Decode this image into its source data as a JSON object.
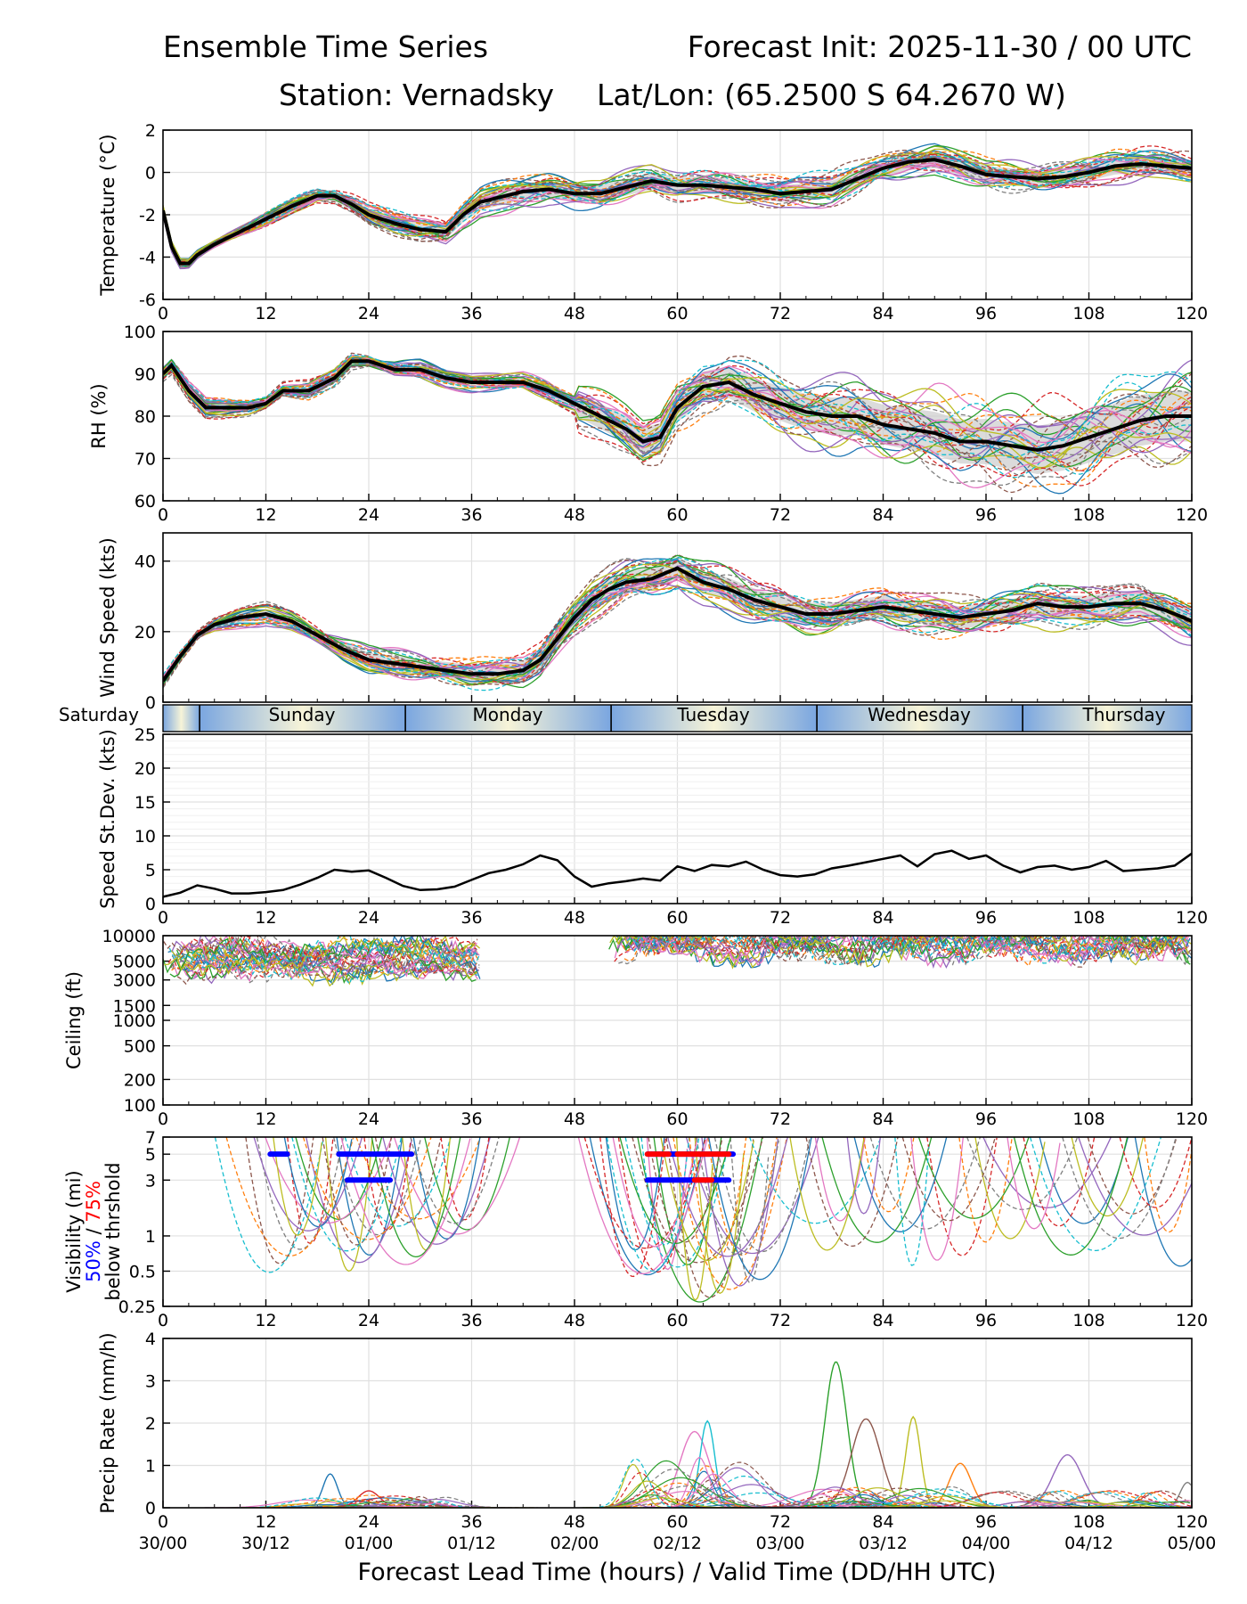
{
  "header": {
    "title_left": "Ensemble Time Series",
    "title_right": "Forecast Init: 2025-11-30 / 00 UTC",
    "station": "Station: Vernadsky",
    "latlon": "Lat/Lon: (65.2500 S 64.2670 W)"
  },
  "x_axis": {
    "ticks": [
      0,
      12,
      24,
      36,
      48,
      60,
      72,
      84,
      96,
      108,
      120
    ],
    "tick_labels": [
      "0",
      "12",
      "24",
      "36",
      "48",
      "60",
      "72",
      "84",
      "96",
      "108",
      "120"
    ],
    "valid_time_labels": [
      "30/00",
      "30/12",
      "01/00",
      "01/12",
      "02/00",
      "02/12",
      "03/00",
      "03/12",
      "04/00",
      "04/12",
      "05/00"
    ],
    "label": "Forecast Lead Time (hours) / Valid Time (DD/HH UTC)"
  },
  "day_strip": {
    "labels": [
      "Saturday",
      "Sunday",
      "Monday",
      "Tuesday",
      "Wednesday",
      "Thursday"
    ],
    "boundaries_h": [
      4.27,
      28.27,
      52.27,
      76.27,
      100.27
    ],
    "colors": {
      "edge": "#7aa6e0",
      "center": "#f7f4d8"
    }
  },
  "legend_text": {
    "vis_50": "50%",
    "slash": " / ",
    "vis_75": "75%",
    "below": "below thrshold",
    "vis_prefix": "Visibility (mi)"
  },
  "colors": {
    "mean": "#000000",
    "spread": "#cccccc",
    "vis_50": "#0000ff",
    "vis_75": "#ff0000"
  },
  "chart_data": [
    {
      "type": "line",
      "id": "temperature",
      "ylabel": "Temperature (°C)",
      "ylim": [
        -6,
        2
      ],
      "yticks": [
        -6,
        -4,
        -2,
        0,
        2
      ],
      "xlim": [
        0,
        120
      ],
      "grid": true,
      "members": 30,
      "ensemble_mean": {
        "x": [
          0,
          1,
          2,
          3,
          4,
          6,
          9,
          12,
          15,
          18,
          20,
          22,
          24,
          27,
          30,
          33,
          35,
          37,
          39,
          42,
          45,
          48,
          51,
          54,
          57,
          60,
          63,
          66,
          69,
          72,
          75,
          78,
          81,
          84,
          87,
          90,
          93,
          96,
          99,
          102,
          105,
          108,
          111,
          114,
          117,
          120
        ],
        "y": [
          -1.8,
          -3.5,
          -4.3,
          -4.3,
          -3.9,
          -3.4,
          -2.8,
          -2.2,
          -1.6,
          -1.1,
          -1.1,
          -1.5,
          -2.0,
          -2.4,
          -2.7,
          -2.8,
          -2.0,
          -1.4,
          -1.2,
          -0.9,
          -0.8,
          -1.0,
          -1.0,
          -0.7,
          -0.4,
          -0.6,
          -0.6,
          -0.7,
          -0.8,
          -1.0,
          -0.9,
          -0.8,
          -0.3,
          0.2,
          0.5,
          0.6,
          0.3,
          -0.1,
          -0.2,
          -0.3,
          -0.2,
          0.0,
          0.3,
          0.4,
          0.3,
          0.2
        ]
      }
    },
    {
      "type": "line",
      "id": "rh",
      "ylabel": "RH (%)",
      "ylim": [
        60,
        100
      ],
      "yticks": [
        60,
        70,
        80,
        90,
        100
      ],
      "xlim": [
        0,
        120
      ],
      "grid": true,
      "members": 30,
      "ensemble_mean": {
        "x": [
          0,
          1,
          3,
          5,
          8,
          10,
          12,
          14,
          17,
          20,
          22,
          24,
          27,
          30,
          33,
          36,
          39,
          42,
          45,
          48,
          51,
          54,
          56,
          58,
          60,
          63,
          66,
          69,
          72,
          75,
          78,
          81,
          84,
          87,
          90,
          93,
          96,
          99,
          102,
          105,
          108,
          111,
          114,
          117,
          120
        ],
        "y": [
          90,
          92,
          86,
          82,
          82,
          82,
          83,
          86,
          86,
          89,
          93,
          93,
          91,
          91,
          89,
          88,
          88,
          88,
          86,
          83,
          80,
          77,
          74,
          75,
          82,
          87,
          88,
          85,
          83,
          81,
          80,
          80,
          78,
          77,
          76,
          74,
          74,
          73,
          72,
          73,
          75,
          77,
          79,
          80,
          80
        ]
      }
    },
    {
      "type": "line",
      "id": "wind_speed",
      "ylabel": "Wind Speed (kts)",
      "ylim": [
        0,
        48
      ],
      "yticks": [
        0,
        20,
        40
      ],
      "xlim": [
        0,
        120
      ],
      "grid": true,
      "members": 30,
      "ensemble_mean": {
        "x": [
          0,
          2,
          4,
          6,
          9,
          12,
          15,
          18,
          21,
          24,
          27,
          30,
          33,
          36,
          39,
          42,
          44,
          46,
          48,
          50,
          52,
          54,
          57,
          60,
          63,
          66,
          69,
          72,
          75,
          78,
          81,
          84,
          87,
          90,
          93,
          96,
          99,
          102,
          105,
          108,
          111,
          114,
          117,
          120
        ],
        "y": [
          6,
          13,
          19,
          22,
          24,
          25,
          23,
          19,
          15,
          12,
          11,
          10,
          9,
          8,
          8,
          9,
          12,
          18,
          24,
          29,
          32,
          34,
          35,
          38,
          34,
          32,
          29,
          27,
          25,
          25,
          26,
          27,
          26,
          25,
          24,
          25,
          26,
          28,
          27,
          27,
          28,
          28,
          26,
          23
        ]
      }
    },
    {
      "type": "line",
      "id": "speed_stdev",
      "ylabel": "Speed St.Dev. (kts)",
      "ylim": [
        0,
        25
      ],
      "yticks": [
        0,
        5,
        10,
        15,
        20,
        25
      ],
      "xlim": [
        0,
        120
      ],
      "grid": true,
      "series": [
        {
          "name": "speed std dev",
          "x": [
            0,
            2,
            4,
            6,
            8,
            10,
            12,
            14,
            16,
            18,
            20,
            22,
            24,
            26,
            28,
            30,
            32,
            34,
            36,
            38,
            40,
            42,
            44,
            46,
            48,
            50,
            52,
            54,
            56,
            58,
            60,
            62,
            64,
            66,
            68,
            70,
            72,
            74,
            76,
            78,
            80,
            82,
            84,
            86,
            88,
            90,
            92,
            94,
            96,
            98,
            100,
            102,
            104,
            106,
            108,
            110,
            112,
            114,
            116,
            118,
            120
          ],
          "y": [
            1.0,
            1.6,
            2.7,
            2.2,
            1.5,
            1.5,
            1.7,
            2.0,
            2.8,
            3.8,
            5.0,
            4.7,
            4.9,
            3.8,
            2.6,
            2.0,
            2.1,
            2.5,
            3.5,
            4.5,
            5.0,
            5.8,
            7.1,
            6.4,
            4.0,
            2.5,
            3.0,
            3.3,
            3.7,
            3.4,
            5.5,
            4.8,
            5.7,
            5.5,
            6.2,
            5.0,
            4.2,
            4.0,
            4.3,
            5.2,
            5.6,
            6.1,
            6.6,
            7.1,
            5.5,
            7.3,
            7.8,
            6.6,
            7.1,
            5.6,
            4.6,
            5.4,
            5.6,
            5.0,
            5.4,
            6.3,
            4.8,
            5.0,
            5.2,
            5.6,
            7.4
          ]
        }
      ]
    },
    {
      "type": "line",
      "id": "ceiling",
      "ylabel": "Ceiling (ft)",
      "yscale": "log",
      "ylim": [
        100,
        10000
      ],
      "yticks": [
        100,
        200,
        500,
        1000,
        1500,
        3000,
        5000,
        10000
      ],
      "xlim": [
        0,
        120
      ],
      "grid": true,
      "members": 30,
      "notes": "members only; cloud bases mostly 1000-10000 ft around h 0-36 and h 52-120"
    },
    {
      "type": "line",
      "id": "visibility",
      "ylabel": "Visibility (mi) 50% / 75% below thrshold",
      "yscale": "log",
      "ylim": [
        0.25,
        7
      ],
      "yticks": [
        0.25,
        0.5,
        1,
        3,
        5,
        7
      ],
      "xlim": [
        0,
        120
      ],
      "grid": true,
      "members": 30,
      "threshold_bars": [
        {
          "level": 5,
          "percentile": 50,
          "color": "#0000ff",
          "start_h": 12.5,
          "end_h": 14.5
        },
        {
          "level": 5,
          "percentile": 50,
          "color": "#0000ff",
          "start_h": 20.5,
          "end_h": 29
        },
        {
          "level": 3,
          "percentile": 50,
          "color": "#0000ff",
          "start_h": 21.5,
          "end_h": 26.5
        },
        {
          "level": 5,
          "percentile": 50,
          "color": "#0000ff",
          "start_h": 56.5,
          "end_h": 66.5
        },
        {
          "level": 5,
          "percentile": 75,
          "color": "#ff0000",
          "start_h": 56.5,
          "end_h": 59
        },
        {
          "level": 5,
          "percentile": 75,
          "color": "#ff0000",
          "start_h": 60,
          "end_h": 66
        },
        {
          "level": 3,
          "percentile": 50,
          "color": "#0000ff",
          "start_h": 56.5,
          "end_h": 66
        },
        {
          "level": 3,
          "percentile": 75,
          "color": "#ff0000",
          "start_h": 62,
          "end_h": 64
        }
      ]
    },
    {
      "type": "line",
      "id": "precip_rate",
      "ylabel": "Precip Rate (mm/h)",
      "ylim": [
        0,
        4
      ],
      "yticks": [
        0,
        1,
        2,
        3,
        4
      ],
      "xlim": [
        0,
        120
      ],
      "grid": true,
      "members": 30,
      "peaks": [
        {
          "x": 19.5,
          "y": 0.8
        },
        {
          "x": 24,
          "y": 0.4
        },
        {
          "x": 62,
          "y": 1.8
        },
        {
          "x": 63.5,
          "y": 2.05
        },
        {
          "x": 78.5,
          "y": 3.45
        },
        {
          "x": 82,
          "y": 2.1
        },
        {
          "x": 87.5,
          "y": 2.15
        },
        {
          "x": 93,
          "y": 1.05
        },
        {
          "x": 105.5,
          "y": 1.25
        },
        {
          "x": 119.5,
          "y": 0.6
        }
      ]
    }
  ]
}
